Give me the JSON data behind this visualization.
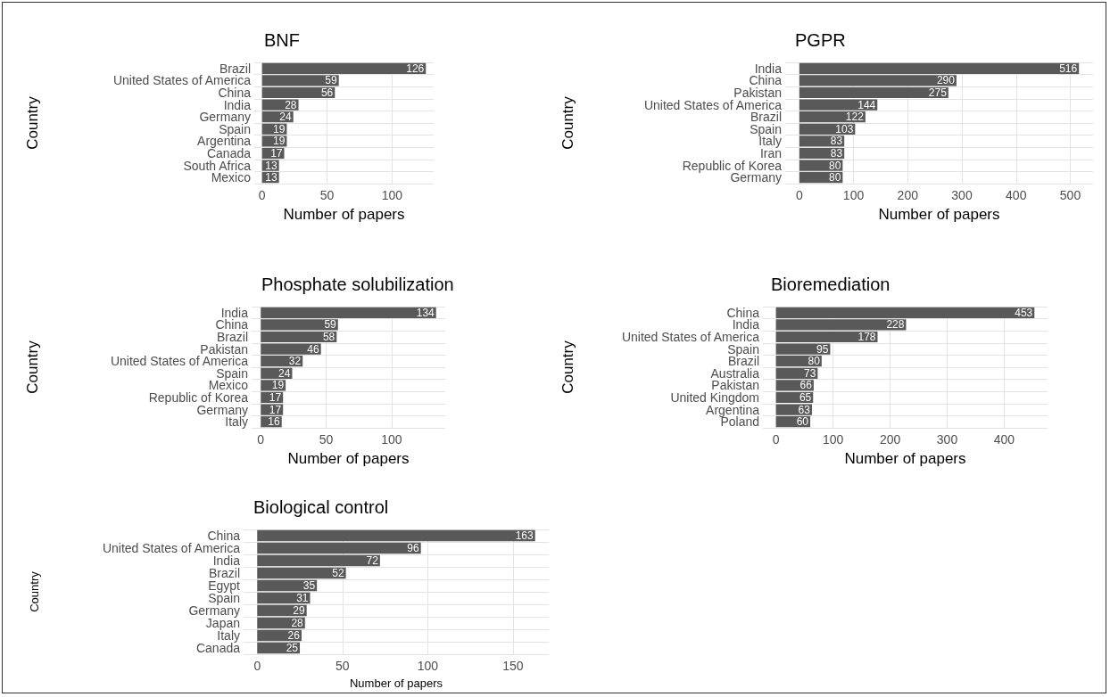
{
  "chart_data": [
    {
      "type": "bar",
      "orientation": "horizontal",
      "title": "BNF",
      "xlabel": "Number of papers",
      "ylabel": "Country",
      "categories": [
        "Brazil",
        "United States of America",
        "China",
        "India",
        "Germany",
        "Spain",
        "Argentina",
        "Canada",
        "South Africa",
        "Mexico"
      ],
      "values": [
        126,
        59,
        56,
        28,
        24,
        19,
        19,
        17,
        13,
        13
      ],
      "color": "#595959",
      "xlim": [
        -6,
        132
      ],
      "xticks": [
        0,
        50,
        100
      ],
      "grid": true,
      "data_labels": true
    },
    {
      "type": "bar",
      "orientation": "horizontal",
      "title": "PGPR",
      "xlabel": "Number of papers",
      "ylabel": "Country",
      "categories": [
        "India",
        "China",
        "Pakistan",
        "United States of America",
        "Brazil",
        "Spain",
        "Italy",
        "Iran",
        "Republic of Korea",
        "Germany"
      ],
      "values": [
        516,
        290,
        275,
        144,
        122,
        103,
        83,
        83,
        80,
        80
      ],
      "color": "#595959",
      "xlim": [
        -26,
        542
      ],
      "xticks": [
        0,
        100,
        200,
        300,
        400,
        500
      ],
      "grid": true,
      "data_labels": true
    },
    {
      "type": "bar",
      "orientation": "horizontal",
      "title": "Phosphate solubilization",
      "xlabel": "Number of papers",
      "ylabel": "Country",
      "categories": [
        "India",
        "China",
        "Brazil",
        "Pakistan",
        "United States of America",
        "Spain",
        "Mexico",
        "Republic of Korea",
        "Germany",
        "Italy"
      ],
      "values": [
        134,
        59,
        58,
        46,
        32,
        24,
        19,
        17,
        17,
        16
      ],
      "color": "#595959",
      "xlim": [
        -7,
        141
      ],
      "xticks": [
        0,
        50,
        100
      ],
      "grid": true,
      "data_labels": true
    },
    {
      "type": "bar",
      "orientation": "horizontal",
      "title": "Bioremediation",
      "xlabel": "Number of papers",
      "ylabel": "Country",
      "categories": [
        "China",
        "India",
        "United States of America",
        "Spain",
        "Brazil",
        "Australia",
        "Pakistan",
        "United Kingdom",
        "Argentina",
        "Poland"
      ],
      "values": [
        453,
        228,
        178,
        95,
        80,
        73,
        66,
        65,
        63,
        60
      ],
      "color": "#595959",
      "xlim": [
        -23,
        476
      ],
      "xticks": [
        0,
        100,
        200,
        300,
        400
      ],
      "grid": true,
      "data_labels": true
    },
    {
      "type": "bar",
      "orientation": "horizontal",
      "title": "Biological control",
      "xlabel": "Number of papers",
      "ylabel": "Country",
      "categories": [
        "China",
        "United States of America",
        "India",
        "Brazil",
        "Egypt",
        "Spain",
        "Germany",
        "Japan",
        "Italy",
        "Canada"
      ],
      "values": [
        163,
        96,
        72,
        52,
        35,
        31,
        29,
        28,
        26,
        25
      ],
      "color": "#595959",
      "xlim": [
        -8,
        171
      ],
      "xticks": [
        0,
        50,
        100,
        150
      ],
      "grid": true,
      "data_labels": true
    }
  ]
}
